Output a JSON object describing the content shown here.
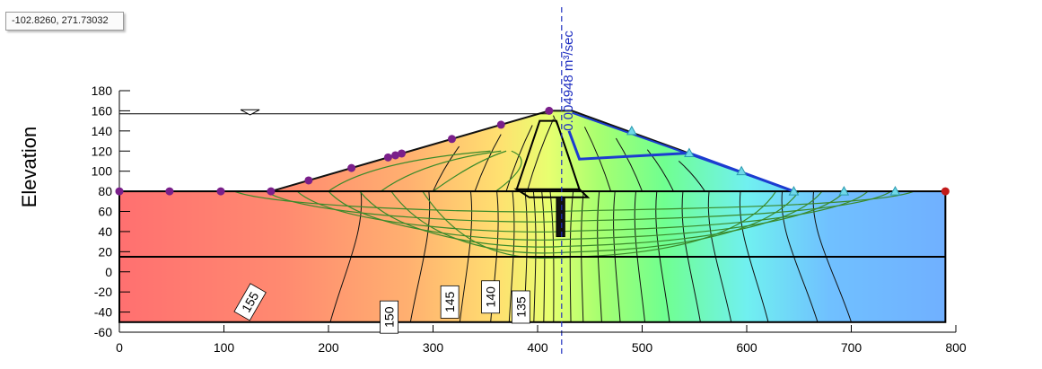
{
  "coordinate_readout": "-102.8260, 271.73032",
  "chart_data": {
    "type": "area",
    "ylabel": "Elevation",
    "xlabel": "",
    "xlim": [
      0,
      800
    ],
    "ylim": [
      -60,
      180
    ],
    "x_ticks": [
      0,
      100,
      200,
      300,
      400,
      500,
      600,
      700,
      800
    ],
    "y_ticks": [
      180,
      160,
      140,
      120,
      100,
      80,
      60,
      40,
      20,
      0,
      -20,
      -40,
      -60
    ],
    "grid": false,
    "flux_label": "0.004948 m³/sec",
    "contour_labels": [
      {
        "text": "155",
        "x": 125,
        "y": -30
      },
      {
        "text": "150",
        "x": 258,
        "y": -45
      },
      {
        "text": "145",
        "x": 316,
        "y": -30
      },
      {
        "text": "140",
        "x": 355,
        "y": -25
      },
      {
        "text": "135",
        "x": 384,
        "y": -35
      }
    ],
    "reservoir_level": 157,
    "flux_section_x": 423,
    "foundation_layer": {
      "x_start": 0,
      "x_end": 790,
      "top": 80,
      "bottom": -50,
      "interface": 15
    },
    "dam": {
      "upstream_toe_x": 145,
      "crest_x_start": 411,
      "crest_x_end": 433,
      "downstream_toe_x": 645,
      "crest_elevation": 160,
      "base_elevation": 80
    },
    "upstream_nodes_x": [
      0,
      48,
      97,
      145,
      181,
      222,
      257,
      264,
      270,
      318,
      365,
      411
    ],
    "downstream_nodes_x": [
      645,
      693,
      742
    ],
    "colors": {
      "high_head": "#ff6f6f",
      "mid_head": "#ffff80",
      "low_head": "#6fb0ff",
      "flow_lines": "#3a8a2a",
      "drain": "#1c3cd0",
      "upstream_nodes": "#7a1f8a",
      "downstream_nodes": "#6fd8e8",
      "end_node": "#c21a1a"
    }
  }
}
